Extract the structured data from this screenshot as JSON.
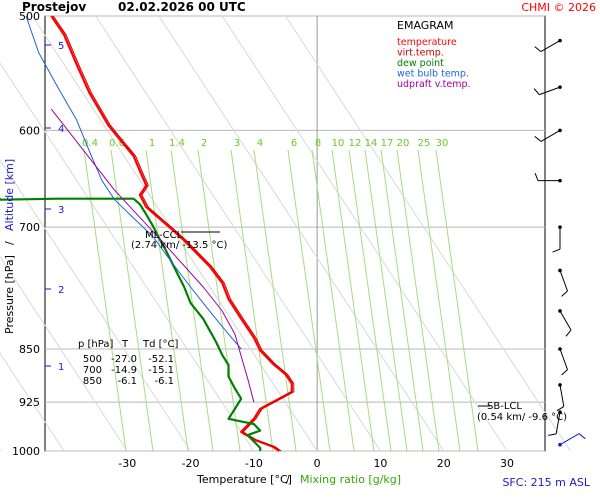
{
  "header": {
    "station": "Prostejov",
    "datetime": "02.02.2026 00 UTC",
    "copyright": "CHMI © 2026"
  },
  "footer": {
    "sfc": "SFC: 215 m ASL"
  },
  "chart_data": {
    "type": "line",
    "title": "EMAGRAM",
    "xlabel": "Temperature [°C]",
    "xlabel_sep": "/",
    "xlabel2": "Mixing ratio [g/kg]",
    "ylabel": "Pressure [hPa]",
    "ylabel_sep": "/",
    "ylabel2": "Altitude [km]",
    "pressure_levels": [
      "500",
      "600",
      "700",
      "850",
      "925",
      "1000"
    ],
    "x_ticks": [
      "-30",
      "-20",
      "-10",
      "0",
      "10",
      "20",
      "30"
    ],
    "altitude_ticks": [
      "1",
      "2",
      "3",
      "4",
      "5"
    ],
    "mixing_ratio_labels": [
      "0.4",
      "0.6",
      "1",
      "1.4",
      "2",
      "3",
      "4",
      "6",
      "8",
      "10",
      "12",
      "14",
      "17",
      "20",
      "25",
      "30"
    ],
    "xlim": [
      -43,
      36
    ],
    "ylim_hpa": [
      1000,
      500
    ],
    "legend": [
      {
        "label": "temperature",
        "color": "#ff0000"
      },
      {
        "label": "virt.temp.",
        "color": "#cc0000"
      },
      {
        "label": "dew point",
        "color": "#008000"
      },
      {
        "label": "wet bulb temp.",
        "color": "#1e64dc"
      },
      {
        "label": "udpraft v.temp.",
        "color": "#a000a0"
      }
    ],
    "table": {
      "headers": [
        "p [hPa]",
        "T",
        "Td [°C]"
      ],
      "rows": [
        [
          "500",
          "-27.0",
          "-52.1"
        ],
        [
          "700",
          "-14.9",
          "-15.1"
        ],
        [
          "850",
          "-6.1",
          "-6.1"
        ]
      ]
    },
    "annotations": {
      "ml_ccl": "ML-CCL",
      "ml_ccl_detail": "(2.74 km/ -13.5 °C)",
      "sb_lcl": "SB-LCL",
      "sb_lcl_detail": "(0.54 km/ -9.6 °C)"
    },
    "series": [
      {
        "name": "temperature",
        "points": [
          [
            -42,
            500
          ],
          [
            -40,
            515
          ],
          [
            -38,
            540
          ],
          [
            -36,
            565
          ],
          [
            -33,
            595
          ],
          [
            -31,
            610
          ],
          [
            -29,
            625
          ],
          [
            -28,
            640
          ],
          [
            -27,
            655
          ],
          [
            -28,
            665
          ],
          [
            -27,
            678
          ],
          [
            -25,
            690
          ],
          [
            -23,
            702
          ],
          [
            -21,
            715
          ],
          [
            -19,
            730
          ],
          [
            -17,
            745
          ],
          [
            -15,
            765
          ],
          [
            -14,
            785
          ],
          [
            -12,
            810
          ],
          [
            -10,
            835
          ],
          [
            -9,
            852
          ],
          [
            -7,
            870
          ],
          [
            -5,
            885
          ],
          [
            -4,
            898
          ],
          [
            -4,
            910
          ],
          [
            -6,
            920
          ],
          [
            -9,
            935
          ],
          [
            -10,
            950
          ],
          [
            -11,
            960
          ],
          [
            -12,
            970
          ],
          [
            -10,
            982
          ],
          [
            -7,
            993
          ],
          [
            -6,
            1000
          ]
        ]
      },
      {
        "name": "dew point",
        "points": [
          [
            -55,
            650
          ],
          [
            -53,
            658
          ],
          [
            -51,
            665
          ],
          [
            -50,
            670
          ],
          [
            -41,
            669
          ],
          [
            -29,
            669
          ],
          [
            -28,
            675
          ],
          [
            -27,
            686
          ],
          [
            -26,
            698
          ],
          [
            -25,
            712
          ],
          [
            -24,
            725
          ],
          [
            -23,
            740
          ],
          [
            -22,
            755
          ],
          [
            -21,
            770
          ],
          [
            -20,
            790
          ],
          [
            -18,
            810
          ],
          [
            -17,
            825
          ],
          [
            -16,
            840
          ],
          [
            -15,
            858
          ],
          [
            -14,
            872
          ],
          [
            -14,
            888
          ],
          [
            -13,
            905
          ],
          [
            -12,
            920
          ],
          [
            -13,
            935
          ],
          [
            -14,
            950
          ],
          [
            -10,
            958
          ],
          [
            -9,
            968
          ],
          [
            -11,
            975
          ],
          [
            -10,
            985
          ],
          [
            -9,
            995
          ],
          [
            -9,
            1000
          ]
        ]
      },
      {
        "name": "wet bulb temp.",
        "points": [
          [
            -46,
            500
          ],
          [
            -44,
            530
          ],
          [
            -41,
            560
          ],
          [
            -38,
            590
          ],
          [
            -36,
            620
          ],
          [
            -34,
            650
          ],
          [
            -32,
            670
          ],
          [
            -29,
            690
          ],
          [
            -26,
            710
          ],
          [
            -24,
            730
          ],
          [
            -22,
            750
          ],
          [
            -20,
            770
          ],
          [
            -18,
            790
          ],
          [
            -16,
            810
          ],
          [
            -14,
            830
          ],
          [
            -12,
            850
          ]
        ]
      },
      {
        "name": "udpraft v.temp.",
        "points": [
          [
            -42,
            580
          ],
          [
            -32,
            660
          ],
          [
            -24,
            720
          ],
          [
            -18,
            770
          ],
          [
            -15,
            800
          ],
          [
            -13,
            830
          ],
          [
            -12,
            860
          ],
          [
            -11,
            890
          ],
          [
            -10,
            925
          ]
        ]
      }
    ],
    "wind_barbs": [
      {
        "hpa": 520,
        "dir": 240
      },
      {
        "hpa": 560,
        "dir": 250
      },
      {
        "hpa": 600,
        "dir": 240
      },
      {
        "hpa": 650,
        "dir": 270
      },
      {
        "hpa": 700,
        "dir": 180
      },
      {
        "hpa": 750,
        "dir": 160
      },
      {
        "hpa": 800,
        "dir": 150
      },
      {
        "hpa": 850,
        "dir": 160
      },
      {
        "hpa": 900,
        "dir": 170
      },
      {
        "hpa": 940,
        "dir": 190
      },
      {
        "hpa": 990,
        "dir": 60
      }
    ]
  }
}
